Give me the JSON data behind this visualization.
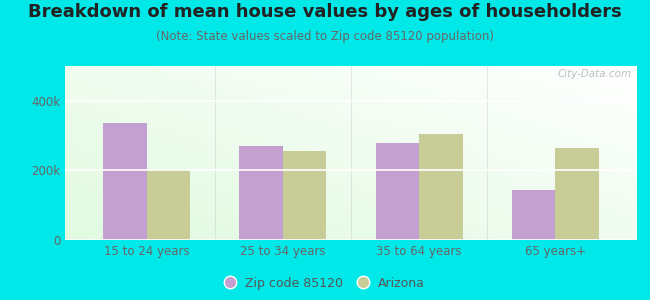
{
  "title": "Breakdown of mean house values by ages of householders",
  "subtitle": "(Note: State values scaled to Zip code 85120 population)",
  "categories": [
    "15 to 24 years",
    "25 to 34 years",
    "35 to 64 years",
    "65 years+"
  ],
  "zip_values": [
    335000,
    270000,
    280000,
    145000
  ],
  "az_values": [
    200000,
    255000,
    305000,
    265000
  ],
  "zip_color": "#c4a0d0",
  "az_color": "#c8cc96",
  "background_outer": "#00e8e8",
  "ylim": [
    0,
    500000
  ],
  "ytick_labels": [
    "0",
    "200k",
    "400k"
  ],
  "ytick_values": [
    0,
    200000,
    400000
  ],
  "legend_zip_label": "Zip code 85120",
  "legend_az_label": "Arizona",
  "bar_width": 0.32,
  "title_fontsize": 13,
  "subtitle_fontsize": 8.5,
  "tick_fontsize": 8.5
}
